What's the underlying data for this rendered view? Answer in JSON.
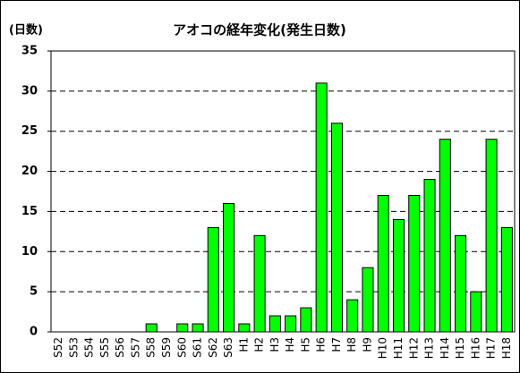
{
  "chart_data": {
    "type": "bar",
    "title": "アオコの経年変化(発生日数)",
    "y_label": "(日数)",
    "categories": [
      "S52",
      "S53",
      "S54",
      "S55",
      "S56",
      "S57",
      "S58",
      "S59",
      "S60",
      "S61",
      "S62",
      "S63",
      "H1",
      "H2",
      "H3",
      "H4",
      "H5",
      "H6",
      "H7",
      "H8",
      "H9",
      "H10",
      "H11",
      "H12",
      "H13",
      "H14",
      "H15",
      "H16",
      "H17",
      "H18"
    ],
    "values": [
      0,
      0,
      0,
      0,
      0,
      0,
      1,
      0,
      1,
      1,
      13,
      16,
      1,
      12,
      2,
      2,
      3,
      31,
      26,
      4,
      8,
      17,
      14,
      17,
      19,
      24,
      12,
      5,
      24,
      13
    ],
    "color": "#00ff00",
    "ylim": [
      0,
      35
    ],
    "yticks": [
      0,
      5,
      10,
      15,
      20,
      25,
      30,
      35
    ],
    "grid": true
  }
}
